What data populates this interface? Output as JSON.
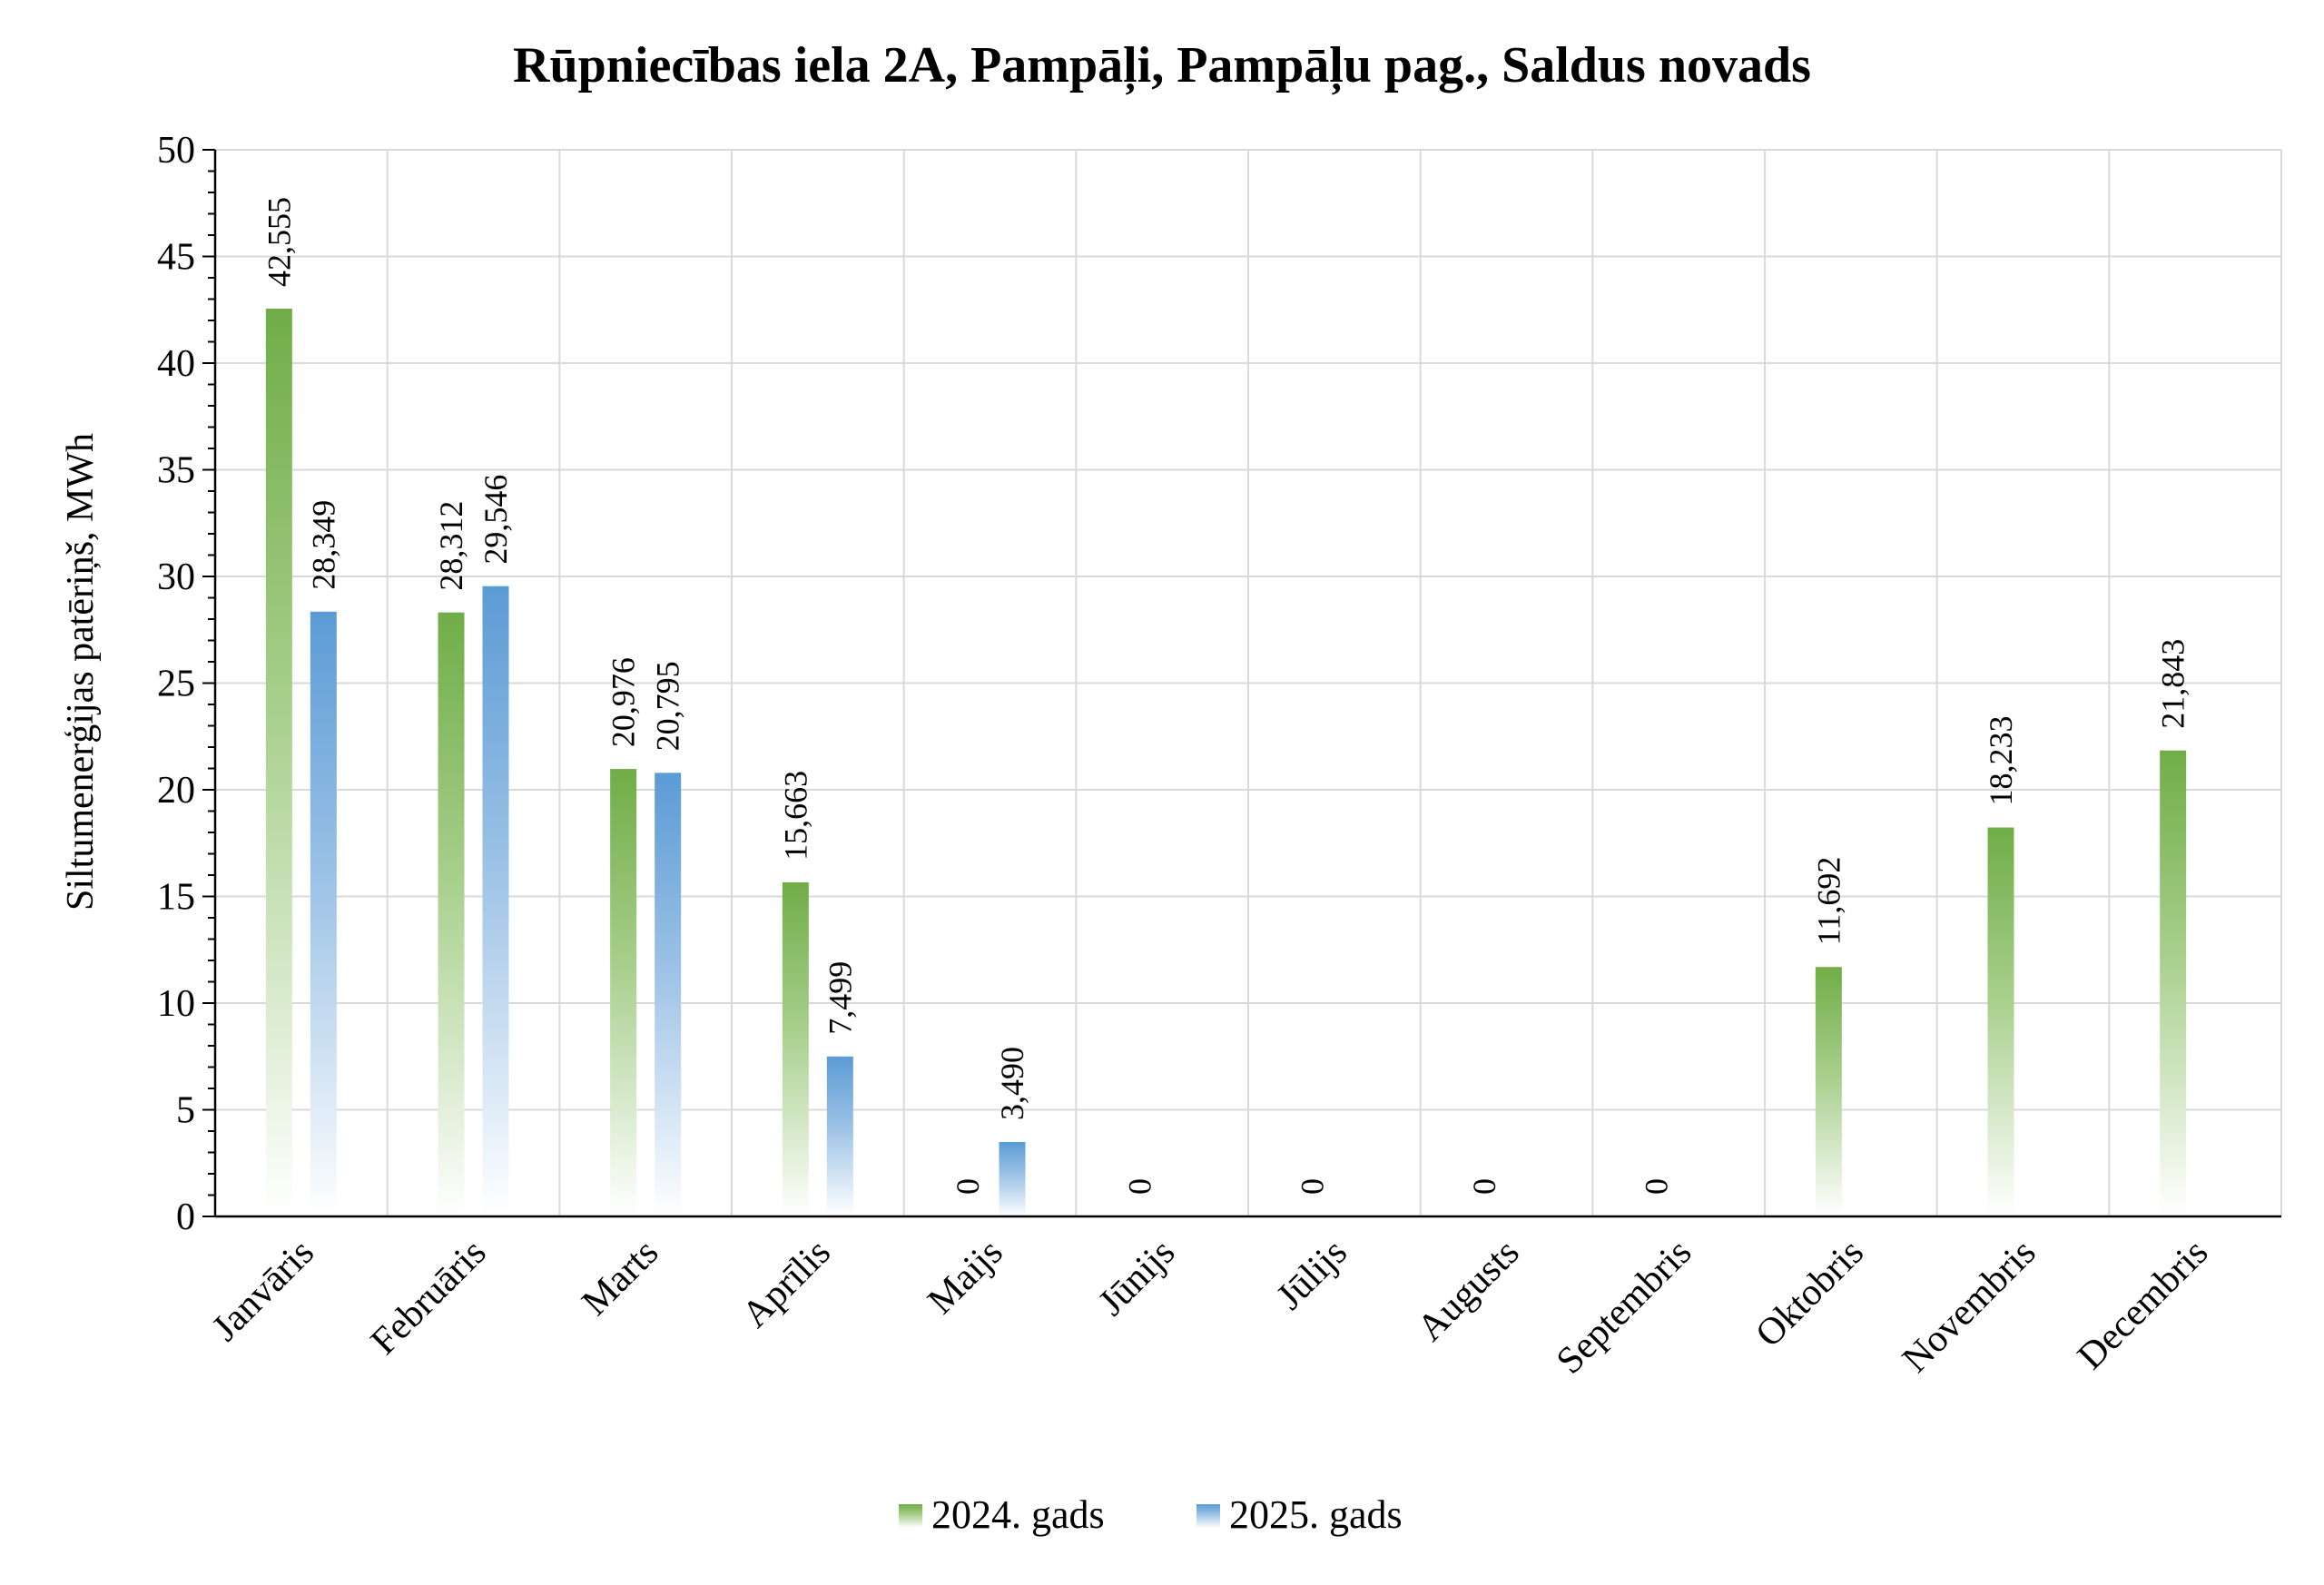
{
  "chart_data": {
    "type": "bar",
    "title": "Rūpniecības iela 2A, Pampāļi, Pampāļu pag., Saldus novads",
    "xlabel": "",
    "ylabel": "Siltumenerģijas patēriņš, MWh",
    "ylim": [
      0,
      50
    ],
    "yticks": [
      "0",
      "5",
      "10",
      "15",
      "20",
      "25",
      "30",
      "35",
      "40",
      "45",
      "50"
    ],
    "ytick_values": [
      0,
      5,
      10,
      15,
      20,
      25,
      30,
      35,
      40,
      45,
      50
    ],
    "grid": true,
    "legend_position": "bottom",
    "categories": [
      "Janvāris",
      "Februāris",
      "Marts",
      "Aprīlis",
      "Maijs",
      "Jūnijs",
      "Jūlijs",
      "Augusts",
      "Septembris",
      "Oktobris",
      "Novembris",
      "Decembris"
    ],
    "series": [
      {
        "name": "2024. gads",
        "color": "#70ad47",
        "values": [
          42.555,
          28.312,
          20.976,
          15.663,
          0,
          0,
          0,
          0,
          0,
          11.692,
          18.233,
          21.843
        ],
        "labels": [
          "42,555",
          "28,312",
          "20,976",
          "15,663",
          "0",
          "0",
          "0",
          "0",
          "0",
          "11,692",
          "18,233",
          "21,843"
        ]
      },
      {
        "name": "2025. gads",
        "color": "#5b9bd5",
        "values": [
          28.349,
          29.546,
          20.795,
          7.499,
          3.49,
          null,
          null,
          null,
          null,
          null,
          null,
          null
        ],
        "labels": [
          "28,349",
          "29,546",
          "20,795",
          "7,499",
          "3,490",
          "",
          "",
          "",
          "",
          "",
          "",
          ""
        ]
      }
    ]
  }
}
